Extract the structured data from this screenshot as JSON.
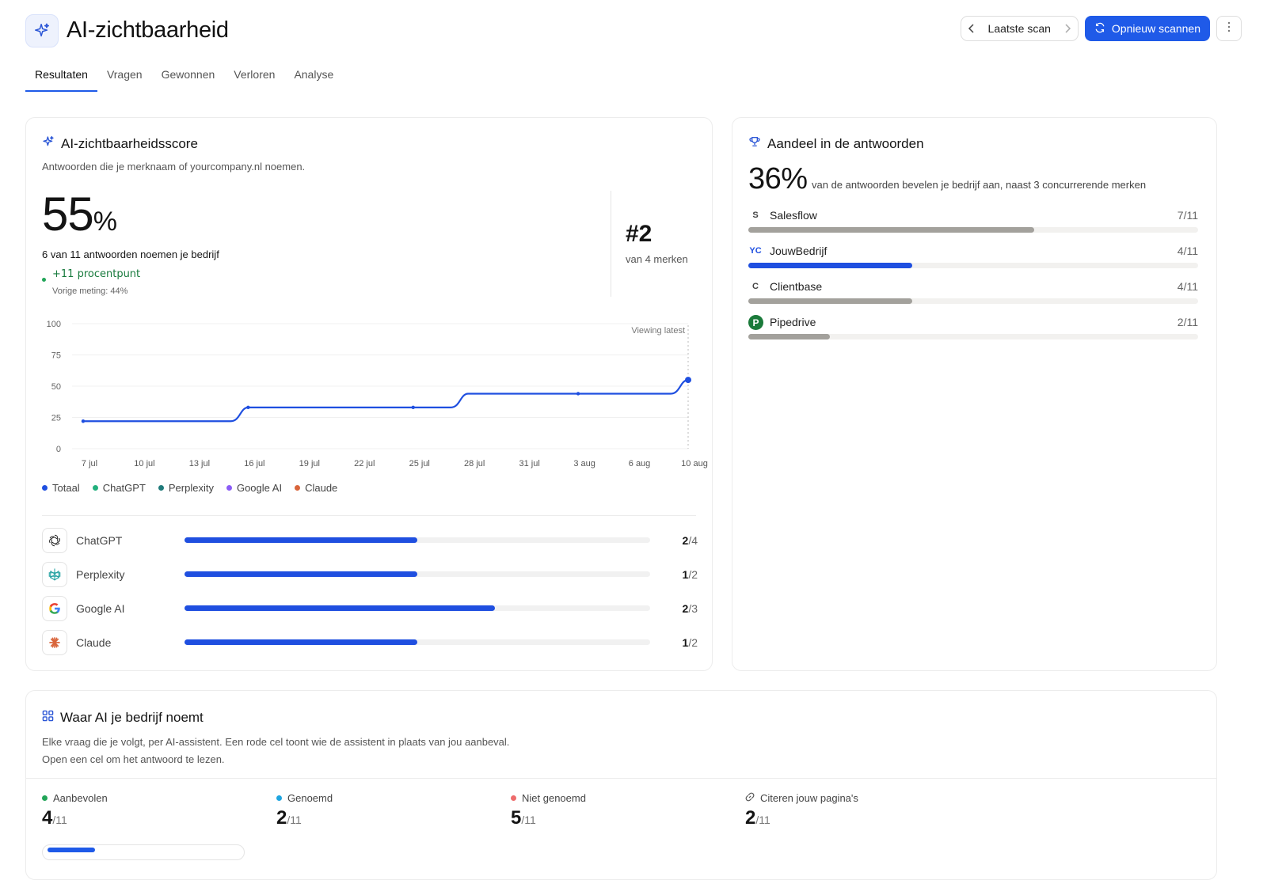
{
  "header": {
    "title": "AI-zichtbaarheid",
    "scan_label": "Laatste scan",
    "rescan_label": "Opnieuw scannen"
  },
  "tabs": [
    {
      "label": "Resultaten",
      "active": true
    },
    {
      "label": "Vragen"
    },
    {
      "label": "Gewonnen"
    },
    {
      "label": "Verloren"
    },
    {
      "label": "Analyse"
    }
  ],
  "score": {
    "title": "AI-zichtbaarheidsscore",
    "subtitle": "Antwoorden die je merknaam of yourcompany.nl noemen.",
    "value": "55",
    "unit": "%",
    "mentions": "6 van 11 antwoorden noemen je bedrijf",
    "delta": "+11 procentpunt",
    "previous": "Vorige meting: 44%",
    "rank": "#2",
    "rank_sub": "van 4 merken"
  },
  "chart_data": {
    "type": "line",
    "x": [
      "7 jul",
      "10 jul",
      "13 jul",
      "16 jul",
      "19 jul",
      "22 jul",
      "25 jul",
      "28 jul",
      "31 jul",
      "3 aug",
      "6 aug",
      "10 aug"
    ],
    "series": [
      {
        "name": "Totaal",
        "values": [
          22,
          22,
          22,
          33,
          33,
          33,
          33,
          44,
          44,
          44,
          44,
          55
        ],
        "color": "#1f4fe0"
      }
    ],
    "ylim": [
      0,
      100
    ],
    "yticks": [
      0,
      25,
      50,
      75,
      100
    ],
    "annotation": "Viewing latest",
    "grid": true
  },
  "legend": [
    {
      "name": "Totaal",
      "color": "#1f4fe0"
    },
    {
      "name": "ChatGPT",
      "color": "#22b07d"
    },
    {
      "name": "Perplexity",
      "color": "#1f7a7a"
    },
    {
      "name": "Google AI",
      "color": "#8b5cf6"
    },
    {
      "name": "Claude",
      "color": "#d9653b"
    }
  ],
  "assistants": [
    {
      "label": "ChatGPT",
      "icon": "chatgpt-icon",
      "num": "2",
      "den": "/4",
      "ratio": 0.5
    },
    {
      "label": "Perplexity",
      "icon": "perplexity-icon",
      "num": "1",
      "den": "/2",
      "ratio": 0.5
    },
    {
      "label": "Google AI",
      "icon": "google-icon",
      "num": "2",
      "den": "/3",
      "ratio": 0.667
    },
    {
      "label": "Claude",
      "icon": "claude-icon",
      "num": "1",
      "den": "/2",
      "ratio": 0.5
    }
  ],
  "share": {
    "title": "Aandeel in de antwoorden",
    "value": "36%",
    "description": "van de antwoorden bevelen je bedrijf aan, naast 3 concurrerende merken",
    "competitors": [
      {
        "label": "Salesflow",
        "icon_text": "S",
        "value": "7/11",
        "ratio": 0.636,
        "own": false
      },
      {
        "label": "JouwBedrijf",
        "icon_text": "YC",
        "value": "4/11",
        "ratio": 0.364,
        "own": true
      },
      {
        "label": "Clientbase",
        "icon_text": "C",
        "value": "4/11",
        "ratio": 0.364,
        "own": false
      },
      {
        "label": "Pipedrive",
        "icon_text": "P",
        "value": "2/11",
        "ratio": 0.182,
        "own": false
      }
    ]
  },
  "where": {
    "title": "Waar AI je bedrijf noemt",
    "line1": "Elke vraag die je volgt, per AI-assistent. Een rode cel toont wie de assistent in plaats van jou aanbeval.",
    "line2": "Open een cel om het antwoord te lezen.",
    "stats": [
      {
        "label": "Aanbevolen",
        "value": "4",
        "total": "/11",
        "color": "#22a558"
      },
      {
        "label": "Genoemd",
        "value": "2",
        "total": "/11",
        "color": "#1ea5e0"
      },
      {
        "label": "Niet genoemd",
        "value": "5",
        "total": "/11",
        "color": "#ee6b6b"
      },
      {
        "label": "Citeren jouw pagina's",
        "value": "2",
        "total": "/11",
        "color": ""
      }
    ]
  }
}
